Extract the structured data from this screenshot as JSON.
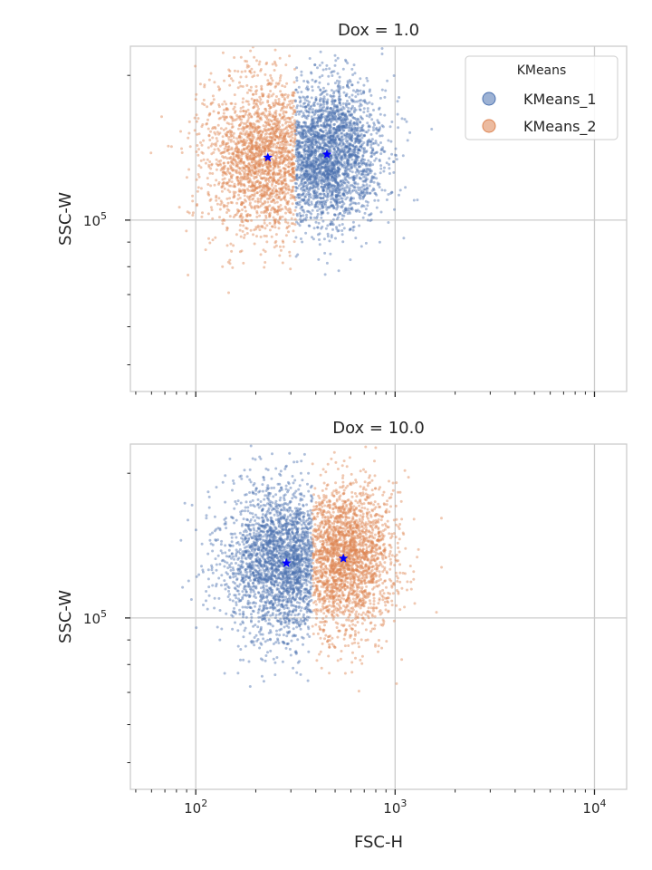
{
  "colors": {
    "series_1": "#4c72b0",
    "series_2": "#dd8452",
    "centroid": "#0000ff",
    "grid": "#cccccc",
    "axes": "#cccccc",
    "text": "#262626"
  },
  "chart_data": [
    {
      "type": "scatter",
      "title": "Dox = 1.0",
      "xlabel": "",
      "ylabel": "SSC-W",
      "xscale": "log",
      "yscale": "log",
      "xlim": [
        47,
        14500
      ],
      "ylim": [
        44000,
        230000
      ],
      "xticks": [],
      "yticks": [
        {
          "value": 100000,
          "label": "10",
          "exp": "5"
        }
      ],
      "grid": true,
      "legend": {
        "title": "KMeans",
        "placement": "top-right",
        "entries": [
          "KMeans_1",
          "KMeans_2"
        ]
      },
      "split_x": 316,
      "series": [
        {
          "name": "KMeans_1",
          "range": "right",
          "center": [
            450,
            137000
          ],
          "spread": [
            0.14,
            0.07
          ],
          "count": 2600
        },
        {
          "name": "KMeans_2",
          "range": "left",
          "center": [
            230,
            135000
          ],
          "spread": [
            0.16,
            0.075
          ],
          "count": 2000
        }
      ],
      "centroids": [
        {
          "x": 230,
          "y": 135000
        },
        {
          "x": 455,
          "y": 137000
        }
      ]
    },
    {
      "type": "scatter",
      "title": "Dox = 10.0",
      "xlabel": "FSC-H",
      "ylabel": "SSC-W",
      "xscale": "log",
      "yscale": "log",
      "xlim": [
        47,
        14500
      ],
      "ylim": [
        44000,
        230000
      ],
      "xticks": [
        {
          "value": 100,
          "label": "10",
          "exp": "2"
        },
        {
          "value": 1000,
          "label": "10",
          "exp": "3"
        },
        {
          "value": 10000,
          "label": "10",
          "exp": "4"
        }
      ],
      "yticks": [
        {
          "value": 100000,
          "label": "10",
          "exp": "5"
        }
      ],
      "grid": true,
      "split_x": 385,
      "series": [
        {
          "name": "KMeans_1",
          "range": "left",
          "center": [
            285,
            130000
          ],
          "spread": [
            0.16,
            0.075
          ],
          "count": 2400
        },
        {
          "name": "KMeans_2",
          "range": "right",
          "center": [
            550,
            133000
          ],
          "spread": [
            0.13,
            0.07
          ],
          "count": 2300
        }
      ],
      "centroids": [
        {
          "x": 285,
          "y": 130000
        },
        {
          "x": 550,
          "y": 133000
        }
      ]
    }
  ]
}
